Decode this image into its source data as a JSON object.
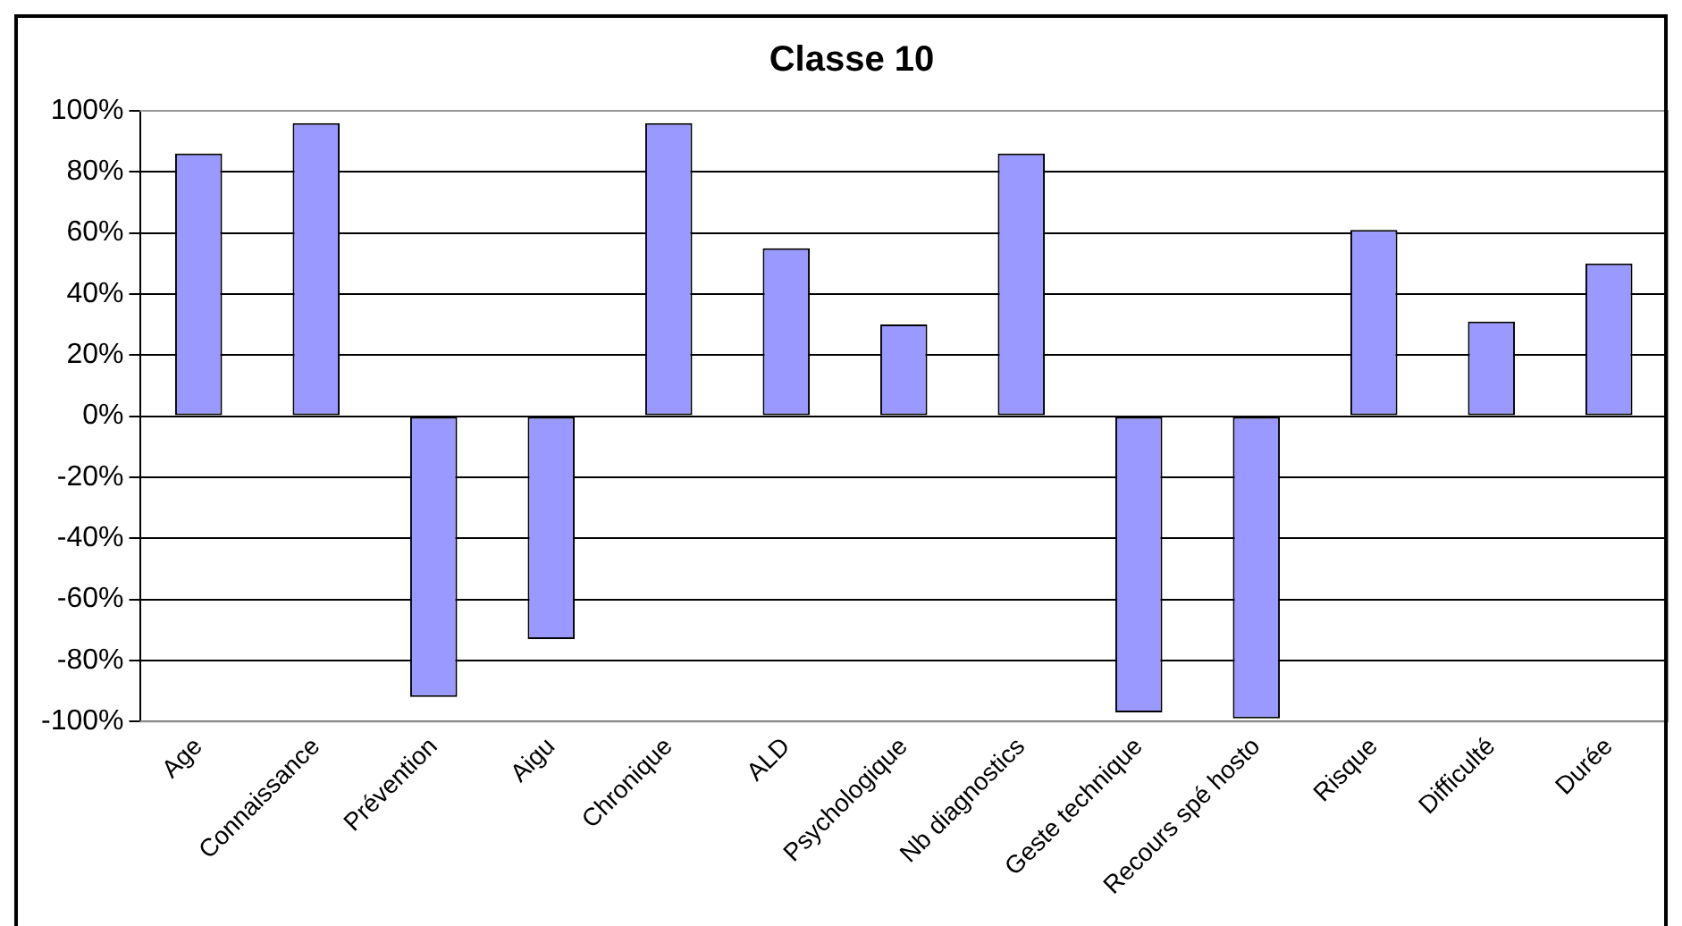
{
  "chart_data": {
    "type": "bar",
    "title": "Classe 10",
    "categories": [
      "Age",
      "Connaissance",
      "Prévention",
      "Aigu",
      "Chronique",
      "ALD",
      "Psychologique",
      "Nb diagnostics",
      "Geste technique",
      "Recours spé hosto",
      "Risque",
      "Difficulté",
      "Durée"
    ],
    "values": [
      86,
      96,
      -92,
      -73,
      96,
      55,
      30,
      86,
      -97,
      -99,
      61,
      31,
      50
    ],
    "color": "#9999ff",
    "ylim": [
      -100,
      100
    ],
    "yticks": [
      {
        "value": -100,
        "label": "-100%"
      },
      {
        "value": -80,
        "label": "-80%"
      },
      {
        "value": -60,
        "label": "-60%"
      },
      {
        "value": -40,
        "label": "-40%"
      },
      {
        "value": -20,
        "label": "-20%"
      },
      {
        "value": 0,
        "label": "0%"
      },
      {
        "value": 20,
        "label": "20%"
      },
      {
        "value": 40,
        "label": "40%"
      },
      {
        "value": 60,
        "label": "60%"
      },
      {
        "value": 80,
        "label": "80%"
      },
      {
        "value": 100,
        "label": "100%"
      }
    ],
    "grid": "y",
    "legend": false
  }
}
